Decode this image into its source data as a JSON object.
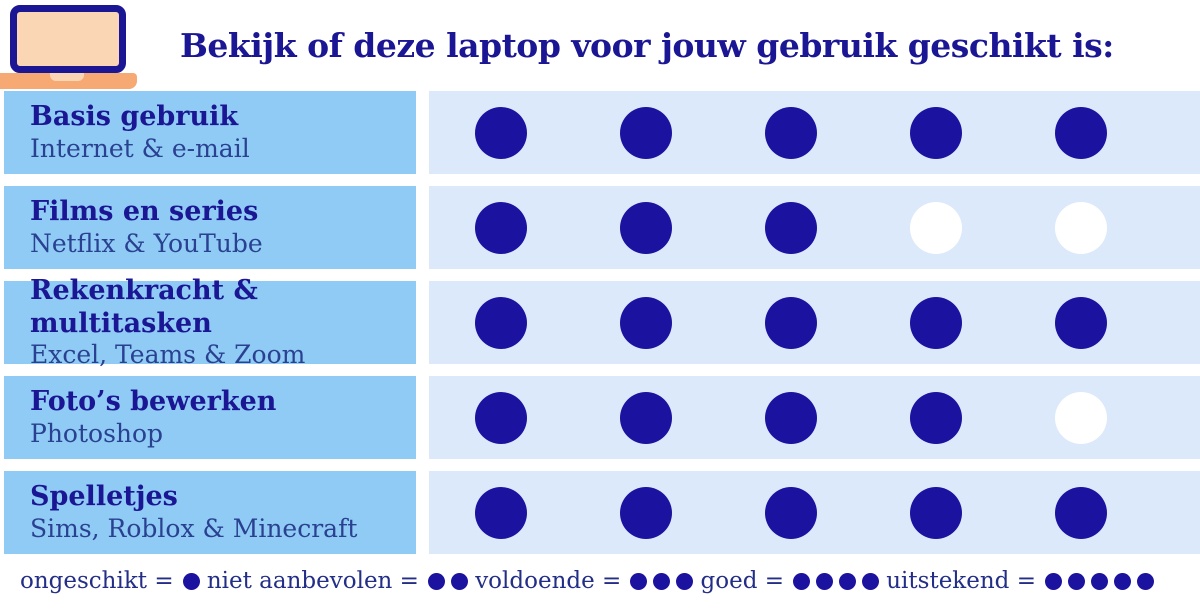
{
  "header": {
    "title": "Bekijk of deze laptop voor jouw gebruik geschikt is:"
  },
  "rows": [
    {
      "title": "Basis gebruik",
      "subtitle": "Internet & e-mail",
      "rating": 5,
      "max": 5
    },
    {
      "title": "Films en series",
      "subtitle": "Netflix & YouTube",
      "rating": 3,
      "max": 5
    },
    {
      "title": "Rekenkracht & multitasken",
      "subtitle": "Excel, Teams & Zoom",
      "rating": 5,
      "max": 5
    },
    {
      "title": "Foto’s bewerken",
      "subtitle": "Photoshop",
      "rating": 4,
      "max": 5
    },
    {
      "title": "Spelletjes",
      "subtitle": "Sims, Roblox & Minecraft",
      "rating": 5,
      "max": 5
    }
  ],
  "legend_equals": "=",
  "legend": [
    {
      "label": "ongeschikt",
      "dots": 1
    },
    {
      "label": "niet aanbevolen",
      "dots": 2
    },
    {
      "label": "voldoende",
      "dots": 3
    },
    {
      "label": "goed",
      "dots": 4
    },
    {
      "label": "uitstekend",
      "dots": 5
    }
  ],
  "colors": {
    "navy": "#1b1693",
    "dot_navy": "#1c12a0",
    "subtitle": "#2a4191",
    "legend_text": "#232e86",
    "label_bg": "#8fcbf4",
    "panel_bg": "#dbe9fa",
    "dot_empty": "#ffffff",
    "laptop_screen": "#fbd6b4",
    "laptop_base": "#f6a973"
  },
  "chart_data": {
    "type": "table",
    "title": "Bekijk of deze laptop voor jouw gebruik geschikt is:",
    "categories": [
      "Basis gebruik",
      "Films en series",
      "Rekenkracht & multitasken",
      "Foto’s bewerken",
      "Spelletjes"
    ],
    "subcategories": [
      "Internet & e-mail",
      "Netflix & YouTube",
      "Excel, Teams & Zoom",
      "Photoshop",
      "Sims, Roblox & Minecraft"
    ],
    "values": [
      5,
      3,
      5,
      4,
      5
    ],
    "scale_max": 5,
    "scale_labels": {
      "1": "ongeschikt",
      "2": "niet aanbevolen",
      "3": "voldoende",
      "4": "goed",
      "5": "uitstekend"
    },
    "legend_position": "bottom"
  }
}
